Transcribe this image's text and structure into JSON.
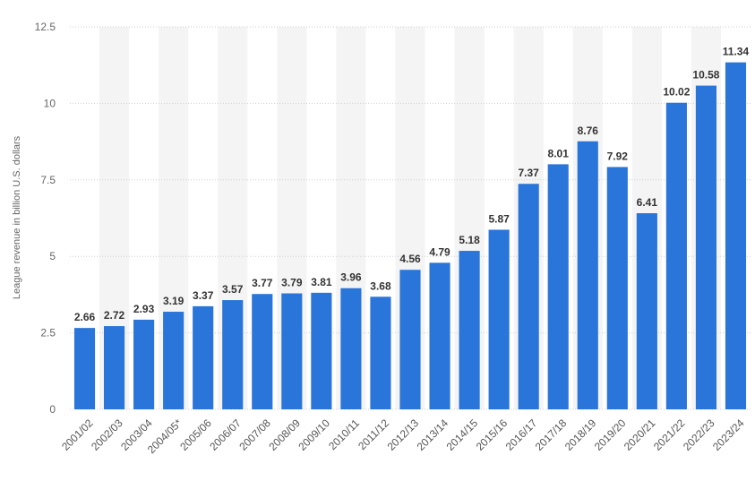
{
  "chart_data": {
    "type": "bar",
    "ylabel": "League revenue in billion U.S. dollars",
    "xlabel": "",
    "title": "",
    "ylim": [
      0,
      12.5
    ],
    "yticks": [
      0,
      2.5,
      5,
      7.5,
      10,
      12.5
    ],
    "ytick_labels": [
      "0",
      "2.5",
      "5",
      "7.5",
      "10",
      "12.5"
    ],
    "grid": true,
    "bar_color": "#2a75d9",
    "band_color": "#f4f4f4",
    "categories": [
      "2001/02",
      "2002/03",
      "2003/04",
      "2004/05*",
      "2005/06",
      "2006/07",
      "2007/08",
      "2008/09",
      "2009/10",
      "2010/11",
      "2011/12",
      "2012/13",
      "2013/14",
      "2014/15",
      "2015/16",
      "2016/17",
      "2017/18",
      "2018/19",
      "2019/20",
      "2020/21",
      "2021/22",
      "2022/23",
      "2023/24"
    ],
    "values": [
      2.66,
      2.72,
      2.93,
      3.19,
      3.37,
      3.57,
      3.77,
      3.79,
      3.81,
      3.96,
      3.68,
      4.56,
      4.79,
      5.18,
      5.87,
      7.37,
      8.01,
      8.76,
      7.92,
      6.41,
      10.02,
      10.58,
      11.34
    ],
    "value_labels": [
      "2.66",
      "2.72",
      "2.93",
      "3.19",
      "3.37",
      "3.57",
      "3.77",
      "3.79",
      "3.81",
      "3.96",
      "3.68",
      "4.56",
      "4.79",
      "5.18",
      "5.87",
      "7.37",
      "8.01",
      "8.76",
      "7.92",
      "6.41",
      "10.02",
      "10.58",
      "11.34"
    ]
  }
}
